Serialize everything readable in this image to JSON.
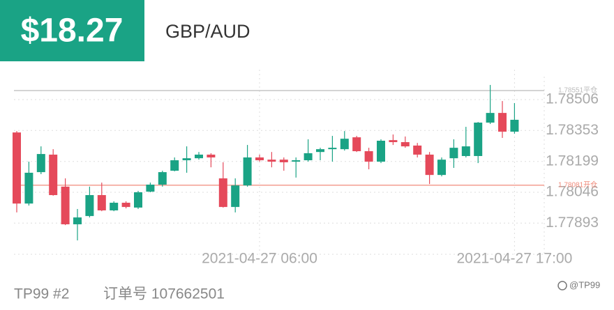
{
  "header": {
    "amount": "$18.27",
    "pair": "GBP/AUD"
  },
  "chart_data": {
    "type": "candlestick",
    "categories": [
      null,
      null,
      null,
      null,
      null,
      null,
      null,
      null,
      null,
      null,
      null,
      null,
      null,
      null,
      null,
      null,
      null,
      null,
      null,
      null,
      "2021-04-27 06:00",
      null,
      null,
      null,
      null,
      null,
      null,
      null,
      null,
      null,
      null,
      null,
      null,
      null,
      null,
      null,
      null,
      null,
      null,
      null,
      null,
      "2021-04-27 17:00"
    ],
    "open": [
      1.78343,
      1.7799,
      1.78146,
      1.78233,
      1.78074,
      1.77887,
      1.77928,
      1.78032,
      1.77956,
      1.77994,
      1.7797,
      1.78049,
      1.78084,
      1.78153,
      1.78205,
      1.78215,
      1.78233,
      1.78115,
      1.77973,
      1.7808,
      1.78219,
      1.78208,
      1.78208,
      1.78198,
      1.78205,
      1.78246,
      1.7826,
      1.7826,
      1.78319,
      1.7825,
      1.78198,
      1.78305,
      1.78295,
      1.78278,
      1.78233,
      1.78132,
      1.78215,
      1.78226,
      1.78226,
      1.78392,
      1.7844,
      1.78347
    ],
    "high": [
      1.7835,
      1.78198,
      1.78274,
      1.7826,
      1.78115,
      1.77963,
      1.78074,
      1.78094,
      1.78001,
      1.78001,
      1.78053,
      1.78094,
      1.78153,
      1.78219,
      1.78274,
      1.78246,
      1.7824,
      1.78195,
      1.78115,
      1.78281,
      1.78233,
      1.78246,
      1.78219,
      1.78219,
      1.78309,
      1.78267,
      1.78326,
      1.7835,
      1.78326,
      1.78267,
      1.78309,
      1.78333,
      1.78323,
      1.78291,
      1.78246,
      1.78219,
      1.78309,
      1.78371,
      1.78395,
      1.78579,
      1.78499,
      1.78489
    ],
    "low": [
      1.77946,
      1.7798,
      1.78136,
      1.78029,
      1.77883,
      1.77807,
      1.77921,
      1.77952,
      1.77952,
      1.77966,
      1.77963,
      1.78046,
      1.78074,
      1.7815,
      1.78143,
      1.78208,
      1.7817,
      1.7797,
      1.77946,
      1.78074,
      1.78198,
      1.7817,
      1.78153,
      1.78119,
      1.78198,
      1.78205,
      1.78198,
      1.78253,
      1.78246,
      1.7816,
      1.78191,
      1.78281,
      1.78267,
      1.78219,
      1.78087,
      1.78125,
      1.78167,
      1.78219,
      1.78191,
      1.78385,
      1.78316,
      1.78337
    ],
    "close": [
      1.7799,
      1.78143,
      1.78236,
      1.78032,
      1.77887,
      1.77921,
      1.78032,
      1.77956,
      1.77994,
      1.77973,
      1.78046,
      1.78084,
      1.78146,
      1.78205,
      1.78215,
      1.78233,
      1.78219,
      1.77973,
      1.7808,
      1.78219,
      1.78205,
      1.78198,
      1.78195,
      1.78205,
      1.7824,
      1.7826,
      1.78267,
      1.78312,
      1.7825,
      1.78198,
      1.78302,
      1.78295,
      1.78274,
      1.78233,
      1.78132,
      1.78208,
      1.78267,
      1.78274,
      1.78392,
      1.7844,
      1.78347,
      1.78406
    ],
    "up_color": "#1aa385",
    "down_color": "#e5495a",
    "ylim": [
      1.7779,
      1.78603
    ],
    "yticks": [
      1.77893,
      1.78046,
      1.78199,
      1.78353,
      1.78506
    ],
    "grid": true,
    "reference_lines": [
      {
        "value": 1.78551,
        "label": "1.78551平仓",
        "color": "#bbbbbb"
      },
      {
        "value": 1.78081,
        "label": "1.78081开仓",
        "color": "#f08a7a"
      }
    ]
  },
  "footer": {
    "account": "TP99 #2",
    "order": "订单号 107662501",
    "watermark": "@TP99"
  }
}
